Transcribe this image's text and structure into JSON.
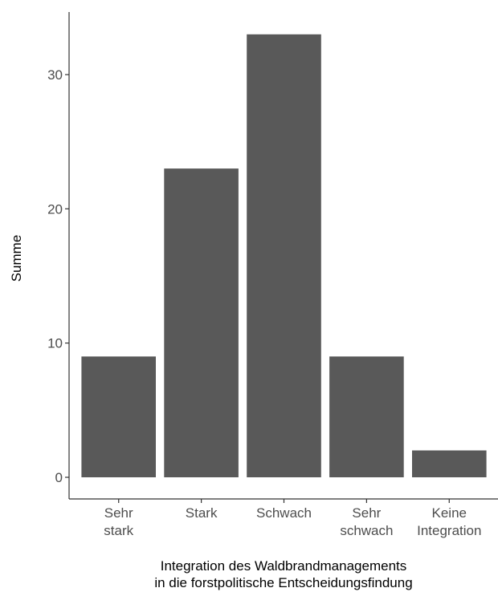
{
  "chart_data": {
    "type": "bar",
    "categories": [
      [
        "Sehr",
        "stark"
      ],
      [
        "Stark"
      ],
      [
        "Schwach"
      ],
      [
        "Sehr",
        "schwach"
      ],
      [
        "Keine",
        "Integration"
      ]
    ],
    "values": [
      9,
      23,
      33,
      9,
      2
    ],
    "xlabel": [
      "Integration des Waldbrandmanagements",
      "in die forstpolitische Entscheidungsfindung"
    ],
    "ylabel": "Summe",
    "yticks": [
      0,
      10,
      20,
      30
    ],
    "ylim": [
      -1.65,
      34.65
    ],
    "grid": false,
    "bar_color": "#595959",
    "axis_color": "#333333",
    "tick_label_color": "#4d4d4d"
  }
}
